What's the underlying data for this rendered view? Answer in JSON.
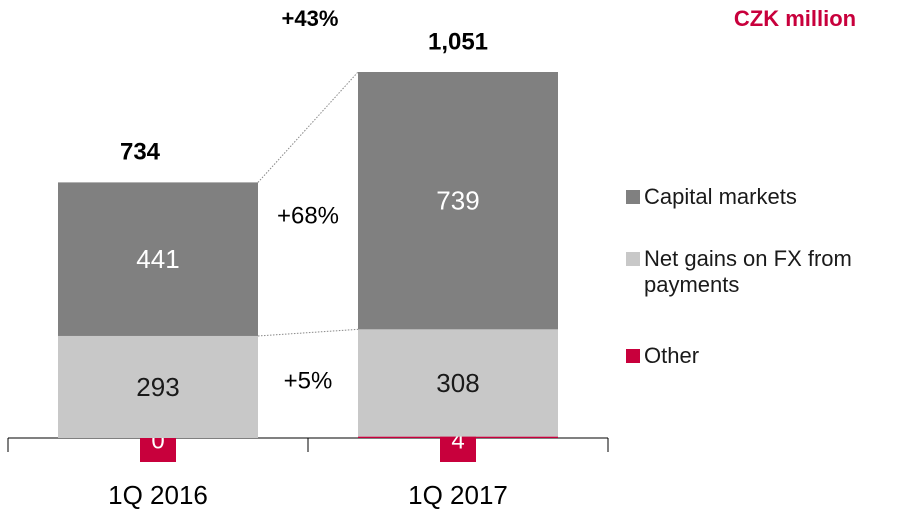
{
  "chart_data": {
    "type": "stacked_bar",
    "unit_label": "CZK million",
    "categories": [
      "1Q 2016",
      "1Q 2017"
    ],
    "series": [
      {
        "name": "Other",
        "color": "#c8003c",
        "label_color": "#ffffff",
        "values": [
          0,
          4
        ]
      },
      {
        "name": "Net gains on FX from payments",
        "color": "#c8c8c8",
        "label_color": "#1a1a1a",
        "values": [
          293,
          308
        ]
      },
      {
        "name": "Capital markets",
        "color": "#808080",
        "label_color": "#ffffff",
        "values": [
          441,
          739
        ]
      }
    ],
    "totals": [
      734,
      1051
    ],
    "total_labels": [
      "734",
      "1,051"
    ],
    "annotations": {
      "total_growth": "+43%",
      "capital_markets_growth": "+68%",
      "fx_growth": "+5%"
    }
  }
}
